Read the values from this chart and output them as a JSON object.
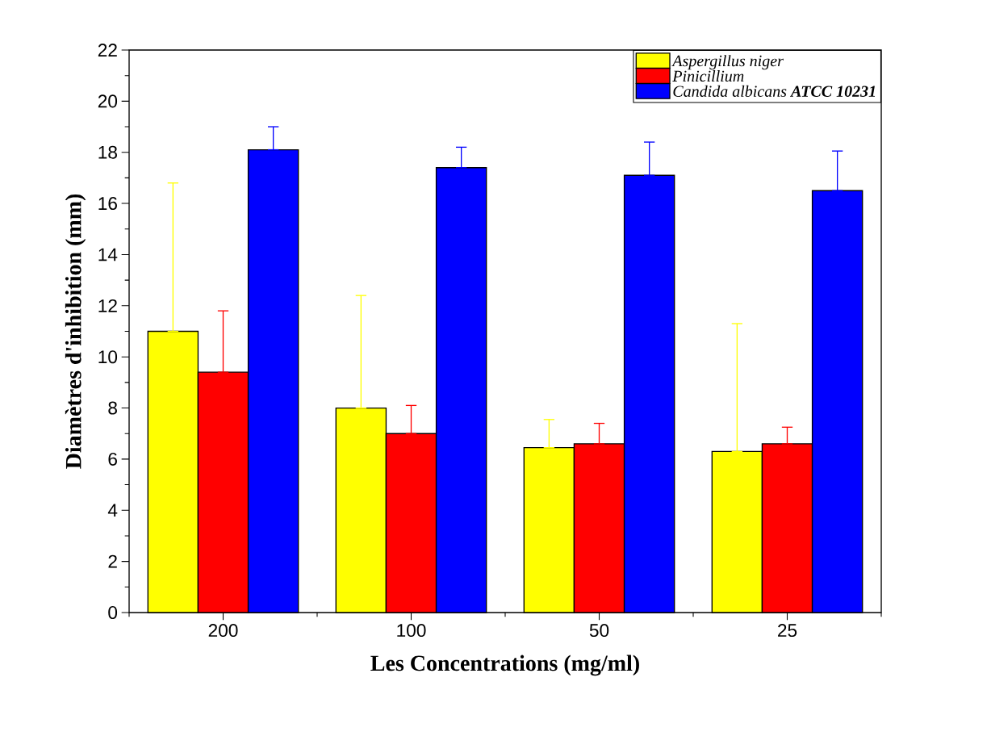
{
  "chart_data": {
    "type": "bar",
    "xlabel": "Les Concentrations (mg/ml)",
    "ylabel": "Diamètres d'inhibition (mm)",
    "categories": [
      "200",
      "100",
      "50",
      "25"
    ],
    "series": [
      {
        "name": "Aspergillus niger",
        "color": "#ffff00",
        "values": [
          11.0,
          8.0,
          6.45,
          6.3
        ],
        "errors": [
          [
            11.0,
            16.8
          ],
          [
            8.0,
            12.4
          ],
          [
            6.45,
            7.55
          ],
          [
            6.3,
            11.3
          ]
        ]
      },
      {
        "name": "Pinicillium",
        "color": "#ff0000",
        "values": [
          9.4,
          7.0,
          6.6,
          6.6
        ],
        "errors": [
          [
            9.4,
            11.8
          ],
          [
            7.0,
            8.1
          ],
          [
            6.6,
            7.4
          ],
          [
            6.6,
            7.25
          ]
        ]
      },
      {
        "name": "Candida albicans **ATCC 10231**",
        "color": "#0000ff",
        "values": [
          18.1,
          17.4,
          17.1,
          16.5
        ],
        "errors": [
          [
            18.1,
            19.0
          ],
          [
            17.4,
            18.2
          ],
          [
            17.1,
            18.4
          ],
          [
            16.5,
            18.05
          ]
        ]
      }
    ],
    "ylim": [
      0,
      22
    ],
    "yticks": [
      0,
      2,
      4,
      6,
      8,
      10,
      12,
      14,
      16,
      18,
      20,
      22
    ],
    "legend": "top right",
    "grid": false
  }
}
